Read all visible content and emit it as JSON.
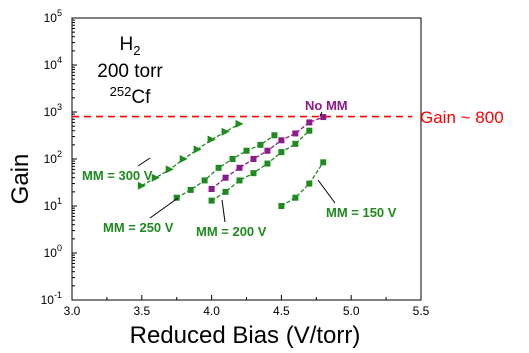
{
  "chart_data": {
    "type": "scatter",
    "xlabel": "Reduced Bias (V/torr)",
    "ylabel": "Gain",
    "xlim": [
      3.0,
      5.5
    ],
    "ylim": [
      0.1,
      100000
    ],
    "yscale": "log",
    "grid": false,
    "x_ticks": [
      "3.0",
      "3.5",
      "4.0",
      "4.5",
      "5.0",
      "5.5"
    ],
    "y_ticks": [
      {
        "base": "10",
        "exp": "-1",
        "value": 0.1
      },
      {
        "base": "10",
        "exp": "0",
        "value": 1
      },
      {
        "base": "10",
        "exp": "1",
        "value": 10
      },
      {
        "base": "10",
        "exp": "2",
        "value": 100
      },
      {
        "base": "10",
        "exp": "3",
        "value": 1000
      },
      {
        "base": "10",
        "exp": "4",
        "value": 10000
      },
      {
        "base": "10",
        "exp": "5",
        "value": 100000
      }
    ],
    "conditions": {
      "gas": {
        "base": "H",
        "sub": "2"
      },
      "pressure": "200 torr",
      "source": {
        "sup": "252",
        "base": "Cf"
      }
    },
    "reference_line": {
      "y": 800,
      "label": "Gain ~ 800",
      "color": "#ff0000",
      "style": "dashed"
    },
    "series": [
      {
        "label": "MM = 300 V",
        "color": "#1f8a1f",
        "marker": "triangle",
        "x": [
          3.5,
          3.6,
          3.7,
          3.8,
          3.9,
          4.0,
          4.1,
          4.2
        ],
        "y": [
          27,
          40,
          60,
          100,
          160,
          260,
          380,
          560
        ]
      },
      {
        "label": "MM = 250 V",
        "color": "#1f8a1f",
        "marker": "square",
        "x": [
          3.75,
          3.85,
          3.95,
          4.05,
          4.15,
          4.25,
          4.35,
          4.45
        ],
        "y": [
          15,
          22,
          35,
          65,
          100,
          150,
          200,
          320
        ]
      },
      {
        "label": "MM = 200 V",
        "color": "#1f8a1f",
        "marker": "square",
        "x": [
          4.0,
          4.1,
          4.2,
          4.3,
          4.4,
          4.5,
          4.6,
          4.7
        ],
        "y": [
          13,
          20,
          35,
          50,
          80,
          140,
          210,
          400
        ]
      },
      {
        "label": "No MM",
        "color": "#8b1a8b",
        "marker": "square",
        "x": [
          4.0,
          4.1,
          4.2,
          4.3,
          4.4,
          4.5,
          4.6,
          4.7,
          4.8
        ],
        "y": [
          23,
          40,
          65,
          100,
          150,
          250,
          350,
          600,
          780
        ]
      },
      {
        "label": "MM = 150 V",
        "color": "#1f8a1f",
        "marker": "square",
        "x": [
          4.5,
          4.6,
          4.7,
          4.8
        ],
        "y": [
          10,
          15,
          30,
          85
        ]
      }
    ]
  }
}
